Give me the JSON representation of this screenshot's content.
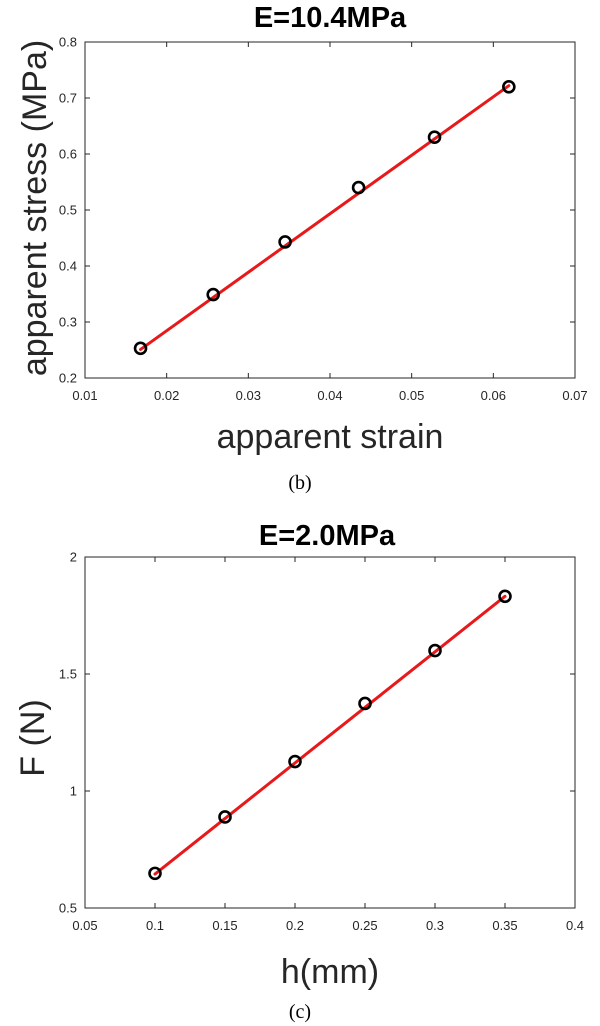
{
  "colors": {
    "fit_line": "#e8191b",
    "marker": "#000000",
    "axes": "#262626"
  },
  "chart_data": [
    {
      "type": "scatter",
      "panel_label": "(b)",
      "title": "E=10.4MPa",
      "xlabel": "apparent strain",
      "ylabel": "apparent stress (MPa)",
      "xlim": [
        0.01,
        0.07
      ],
      "ylim": [
        0.2,
        0.8
      ],
      "xticks": [
        0.01,
        0.02,
        0.03,
        0.04,
        0.05,
        0.06,
        0.07
      ],
      "xtick_labels": [
        "0.01",
        "0.02",
        "0.03",
        "0.04",
        "0.05",
        "0.06",
        "0.07"
      ],
      "yticks": [
        0.2,
        0.3,
        0.4,
        0.5,
        0.6,
        0.7,
        0.8
      ],
      "ytick_labels": [
        "0.2",
        "0.3",
        "0.4",
        "0.5",
        "0.6",
        "0.7",
        "0.8"
      ],
      "grid": false,
      "series": [
        {
          "marker": "circle",
          "x": [
            0.0168,
            0.0257,
            0.0345,
            0.0435,
            0.0528,
            0.0619
          ],
          "y": [
            0.253,
            0.349,
            0.443,
            0.54,
            0.63,
            0.72
          ]
        }
      ],
      "fit_line": {
        "x": [
          0.0168,
          0.0619
        ],
        "y": [
          0.251,
          0.722
        ]
      }
    },
    {
      "type": "scatter",
      "panel_label": "(c)",
      "title": "E=2.0MPa",
      "xlabel": "h(mm)",
      "ylabel": "F (N)",
      "xlim": [
        0.05,
        0.4
      ],
      "ylim": [
        0.5,
        2.0
      ],
      "xticks": [
        0.05,
        0.1,
        0.15,
        0.2,
        0.25,
        0.3,
        0.35,
        0.4
      ],
      "xtick_labels": [
        "0.05",
        "0.1",
        "0.15",
        "0.2",
        "0.25",
        "0.3",
        "0.35",
        "0.4"
      ],
      "yticks": [
        0.5,
        1.0,
        1.5,
        2.0
      ],
      "ytick_labels": [
        "0.5",
        "1",
        "1.5",
        "2"
      ],
      "grid": false,
      "series": [
        {
          "marker": "circle",
          "x": [
            0.1,
            0.15,
            0.2,
            0.25,
            0.3,
            0.35
          ],
          "y": [
            0.648,
            0.889,
            1.126,
            1.374,
            1.6,
            1.832
          ]
        }
      ],
      "fit_line": {
        "x": [
          0.1,
          0.35
        ],
        "y": [
          0.645,
          1.832
        ]
      }
    }
  ]
}
